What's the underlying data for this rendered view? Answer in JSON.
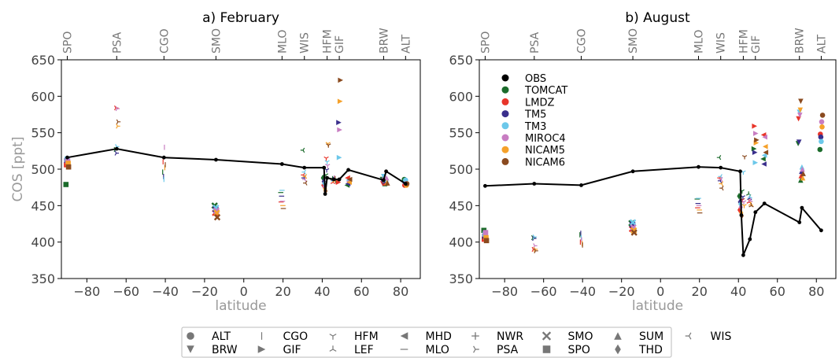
{
  "colors": {
    "OBS": "#000000",
    "TOMCAT": "#1b6b2b",
    "LMDZ": "#e8352a",
    "TM5": "#3a2f8c",
    "TM3": "#6cc8ea",
    "MIROC4": "#c87dc2",
    "NICAM5": "#f5a12a",
    "NICAM6": "#8a4a1f",
    "axis_label_gray": "#999999"
  },
  "site_marker_legend": [
    {
      "site": "ALT",
      "icon": "circle-icon"
    },
    {
      "site": "BRW",
      "icon": "triangle-down-icon"
    },
    {
      "site": "CGO",
      "icon": "vline-icon"
    },
    {
      "site": "GIF",
      "icon": "triangle-right-icon"
    },
    {
      "site": "HFM",
      "icon": "tri-down-icon"
    },
    {
      "site": "LEF",
      "icon": "tri-up-icon"
    },
    {
      "site": "MHD",
      "icon": "triangle-left-icon"
    },
    {
      "site": "MLO",
      "icon": "hline-icon"
    },
    {
      "site": "NWR",
      "icon": "plus-icon"
    },
    {
      "site": "PSA",
      "icon": "tri-right-icon"
    },
    {
      "site": "SMO",
      "icon": "x-icon"
    },
    {
      "site": "SPO",
      "icon": "square-icon"
    },
    {
      "site": "SUM",
      "icon": "triangle-up-icon"
    },
    {
      "site": "THD",
      "icon": "diamond-icon"
    },
    {
      "site": "WIS",
      "icon": "tri-left-icon"
    }
  ],
  "chart_data": [
    {
      "type": "scatter",
      "title": "a) February",
      "xlabel": "latitude",
      "ylabel": "COS [ppt]",
      "xlim": [
        -93,
        90
      ],
      "ylim": [
        350,
        650
      ],
      "xticks": [
        -80,
        -60,
        -40,
        -20,
        0,
        20,
        40,
        60,
        80
      ],
      "yticks": [
        350,
        400,
        450,
        500,
        550,
        600,
        650
      ],
      "top_axis_sites": [
        {
          "label": "SPO",
          "lat": -90
        },
        {
          "label": "PSA",
          "lat": -64.8
        },
        {
          "label": "CGO",
          "lat": -40.7
        },
        {
          "label": "SMO",
          "lat": -14.2
        },
        {
          "label": "MLO",
          "lat": 19.5
        },
        {
          "label": "WIS",
          "lat": 30.9
        },
        {
          "label": "HFM",
          "lat": 42.5
        },
        {
          "label": "GIF",
          "lat": 48.7
        },
        {
          "label": "BRW",
          "lat": 71.3
        },
        {
          "label": "ALT",
          "lat": 82.5
        }
      ],
      "obs_line": {
        "x": [
          -90,
          -64.8,
          -40.7,
          -14.2,
          19.5,
          30.9,
          40.9,
          41.5,
          42.5,
          45.9,
          48.7,
          53.3,
          71.3,
          72.6,
          82.5
        ],
        "y": [
          516,
          528,
          516,
          513,
          507,
          502,
          502,
          466,
          488,
          486,
          486,
          499,
          485,
          497,
          480
        ]
      },
      "site_groups": [
        {
          "site": "SPO",
          "x": -90,
          "values": {
            "OBS": 516,
            "TOMCAT": 479,
            "LMDZ": 506,
            "TM5": 512,
            "TM3": 514,
            "MIROC4": 511,
            "NICAM5": 508,
            "NICAM6": 503
          }
        },
        {
          "site": "PSA",
          "x": -64.8,
          "values": {
            "OBS": 528,
            "TOMCAT": 527,
            "LMDZ": 584,
            "TM5": 522,
            "TM3": 531,
            "MIROC4": 583,
            "NICAM5": 559,
            "NICAM6": 565
          }
        },
        {
          "site": "CGO",
          "x": -40.7,
          "values": {
            "OBS": 516,
            "TOMCAT": 496,
            "LMDZ": 510,
            "TM5": 490,
            "TM3": 486,
            "MIROC4": 530,
            "NICAM5": 502,
            "NICAM6": 506
          }
        },
        {
          "site": "SMO",
          "x": -14.2,
          "values": {
            "OBS": 513,
            "TOMCAT": 450,
            "LMDZ": 440,
            "TM5": 445,
            "TM3": 447,
            "MIROC4": 443,
            "NICAM5": 440,
            "NICAM6": 434
          }
        },
        {
          "site": "MLO",
          "x": 19.5,
          "values": {
            "OBS": 507,
            "TOMCAT": 468,
            "LMDZ": 455,
            "TM5": 463,
            "TM3": 471,
            "MIROC4": 456,
            "NICAM5": 450,
            "NICAM6": 446
          }
        },
        {
          "site": "WIS",
          "x": 30.9,
          "values": {
            "OBS": 502,
            "TOMCAT": 526,
            "LMDZ": 492,
            "TM5": 488,
            "TM3": 496,
            "MIROC4": 486,
            "NICAM5": 490,
            "NICAM6": 481
          }
        },
        {
          "site": "HFM",
          "x": 42.5,
          "values": {
            "OBS": 488,
            "TOMCAT": 492,
            "LMDZ": 515,
            "TM5": 499,
            "TM3": 510,
            "MIROC4": 505,
            "NICAM5": 535,
            "NICAM6": 533
          }
        },
        {
          "site": "THD",
          "x": 41.0,
          "values": {
            "OBS": 502,
            "TOMCAT": 488,
            "LMDZ": 478,
            "TM5": 483,
            "TM3": 480,
            "MIROC4": 476,
            "NICAM5": 473,
            "NICAM6": 470
          }
        },
        {
          "site": "LEF",
          "x": 45.9,
          "values": {
            "OBS": 486,
            "TOMCAT": 487,
            "LMDZ": 482,
            "TM5": 486,
            "TM3": 485,
            "MIROC4": 488,
            "NICAM5": 484,
            "NICAM6": 487
          }
        },
        {
          "site": "GIF",
          "x": 48.7,
          "values": {
            "OBS": 486,
            "TOMCAT": 484,
            "LMDZ": 482,
            "TM5": 564,
            "TM3": 516,
            "MIROC4": 554,
            "NICAM5": 593,
            "NICAM6": 622
          }
        },
        {
          "site": "MHD",
          "x": 53.3,
          "values": {
            "OBS": 499,
            "TOMCAT": 478,
            "LMDZ": 488,
            "TM5": 480,
            "TM3": 485,
            "MIROC4": 483,
            "NICAM5": 482,
            "NICAM6": 486
          }
        },
        {
          "site": "BRW",
          "x": 71.3,
          "values": {
            "OBS": 485,
            "TOMCAT": 486,
            "LMDZ": 480,
            "TM5": 482,
            "TM3": 490,
            "MIROC4": 485,
            "NICAM5": 481,
            "NICAM6": 483
          }
        },
        {
          "site": "SUM",
          "x": 72.6,
          "values": {
            "OBS": 497,
            "TOMCAT": 480,
            "LMDZ": 481,
            "TM5": 484,
            "TM3": 486,
            "MIROC4": 488,
            "NICAM5": 482,
            "NICAM6": 481
          }
        },
        {
          "site": "ALT",
          "x": 82.5,
          "values": {
            "OBS": 480,
            "TOMCAT": 486,
            "LMDZ": 478,
            "TM5": 482,
            "TM3": 485,
            "MIROC4": 480,
            "NICAM5": 478,
            "NICAM6": 480
          }
        }
      ]
    },
    {
      "type": "scatter",
      "title": "b) August",
      "xlabel": "latitude",
      "ylabel": "",
      "xlim": [
        -93,
        90
      ],
      "ylim": [
        350,
        650
      ],
      "xticks": [
        -80,
        -60,
        -40,
        -20,
        0,
        20,
        40,
        60,
        80
      ],
      "yticks": [
        350,
        400,
        450,
        500,
        550,
        600,
        650
      ],
      "top_axis_sites": [
        {
          "label": "SPO",
          "lat": -90
        },
        {
          "label": "PSA",
          "lat": -64.8
        },
        {
          "label": "CGO",
          "lat": -40.7
        },
        {
          "label": "SMO",
          "lat": -14.2
        },
        {
          "label": "MLO",
          "lat": 19.5
        },
        {
          "label": "WIS",
          "lat": 30.9
        },
        {
          "label": "HFM",
          "lat": 42.5
        },
        {
          "label": "GIF",
          "lat": 48.7
        },
        {
          "label": "BRW",
          "lat": 71.3
        },
        {
          "label": "ALT",
          "lat": 82.5
        }
      ],
      "legend_models": [
        "OBS",
        "TOMCAT",
        "LMDZ",
        "TM5",
        "TM3",
        "MIROC4",
        "NICAM5",
        "NICAM6"
      ],
      "legend_placement": "top-left",
      "obs_line": {
        "x": [
          -90,
          -64.8,
          -40.7,
          -14.2,
          19.5,
          30.9,
          40.9,
          41.5,
          42.5,
          45.9,
          48.7,
          53.3,
          71.3,
          72.6,
          82.5
        ],
        "y": [
          477,
          480,
          478,
          497,
          503,
          502,
          497,
          437,
          382,
          404,
          441,
          453,
          427,
          447,
          416
        ]
      },
      "site_groups": [
        {
          "site": "SPO",
          "x": -90,
          "values": {
            "OBS": 477,
            "TOMCAT": 416,
            "LMDZ": 404,
            "TM5": 408,
            "TM3": 411,
            "MIROC4": 413,
            "NICAM5": 406,
            "NICAM6": 402
          }
        },
        {
          "site": "PSA",
          "x": -64.8,
          "values": {
            "OBS": 480,
            "TOMCAT": 406,
            "LMDZ": 390,
            "TM5": 405,
            "TM3": 407,
            "MIROC4": 395,
            "NICAM5": 390,
            "NICAM6": 388
          }
        },
        {
          "site": "CGO",
          "x": -40.7,
          "values": {
            "OBS": 478,
            "TOMCAT": 410,
            "LMDZ": 400,
            "TM5": 412,
            "TM3": 406,
            "MIROC4": 403,
            "NICAM5": 398,
            "NICAM6": 396
          }
        },
        {
          "site": "SMO",
          "x": -14.2,
          "values": {
            "OBS": 497,
            "TOMCAT": 426,
            "LMDZ": 418,
            "TM5": 424,
            "TM3": 427,
            "MIROC4": 420,
            "NICAM5": 416,
            "NICAM6": 413
          }
        },
        {
          "site": "MLO",
          "x": 19.5,
          "values": {
            "OBS": 503,
            "TOMCAT": 459,
            "LMDZ": 447,
            "TM5": 453,
            "TM3": 460,
            "MIROC4": 450,
            "NICAM5": 444,
            "NICAM6": 440
          }
        },
        {
          "site": "WIS",
          "x": 30.9,
          "values": {
            "OBS": 502,
            "TOMCAT": 516,
            "LMDZ": 488,
            "TM5": 484,
            "TM3": 490,
            "MIROC4": 486,
            "NICAM5": 480,
            "NICAM6": 474
          }
        },
        {
          "site": "HFM",
          "x": 42.5,
          "values": {
            "OBS": 382,
            "TOMCAT": 470,
            "LMDZ": 458,
            "TM5": 462,
            "TM3": 496,
            "MIROC4": 455,
            "NICAM5": 450,
            "NICAM6": 517
          }
        },
        {
          "site": "THD",
          "x": 41.0,
          "values": {
            "OBS": 497,
            "TOMCAT": 463,
            "LMDZ": 444,
            "TM5": 455,
            "TM3": 452,
            "MIROC4": 448,
            "NICAM5": 440,
            "NICAM6": 436
          }
        },
        {
          "site": "LEF",
          "x": 45.9,
          "values": {
            "OBS": 404,
            "TOMCAT": 466,
            "LMDZ": 455,
            "TM5": 460,
            "TM3": 462,
            "MIROC4": 457,
            "NICAM5": 452,
            "NICAM6": 450
          }
        },
        {
          "site": "GIF",
          "x": 48.7,
          "values": {
            "OBS": 441,
            "TOMCAT": 528,
            "LMDZ": 559,
            "TM5": 523,
            "TM3": 509,
            "MIROC4": 549,
            "NICAM5": 536,
            "NICAM6": 540
          }
        },
        {
          "site": "MHD",
          "x": 53.3,
          "values": {
            "OBS": 453,
            "TOMCAT": 514,
            "LMDZ": 547,
            "TM5": 507,
            "TM3": 519,
            "MIROC4": 544,
            "NICAM5": 531,
            "NICAM6": 523
          }
        },
        {
          "site": "BRW",
          "x": 71.3,
          "values": {
            "OBS": 427,
            "TOMCAT": 535,
            "LMDZ": 569,
            "TM5": 537,
            "TM3": 578,
            "MIROC4": 574,
            "NICAM5": 581,
            "NICAM6": 593
          }
        },
        {
          "site": "SUM",
          "x": 72.6,
          "values": {
            "OBS": 447,
            "TOMCAT": 485,
            "LMDZ": 491,
            "TM5": 497,
            "TM3": 503,
            "MIROC4": 500,
            "NICAM5": 488,
            "NICAM6": 494
          }
        },
        {
          "site": "ALT",
          "x": 82.5,
          "values": {
            "OBS": 416,
            "TOMCAT": 527,
            "LMDZ": 548,
            "TM5": 544,
            "TM3": 538,
            "MIROC4": 565,
            "NICAM5": 558,
            "NICAM6": 574
          }
        }
      ]
    }
  ]
}
